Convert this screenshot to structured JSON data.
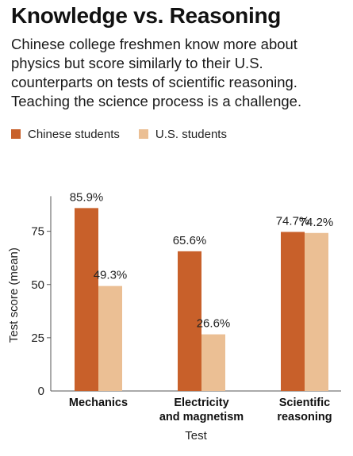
{
  "title": "Knowledge vs. Reasoning",
  "subtitle": "Chinese college freshmen know more about physics but score similarly to their U.S. counterparts on tests of scientific reasoning. Teaching the science process is a challenge.",
  "colors": {
    "chinese": "#c8602a",
    "us": "#ebbf94",
    "axis": "#555555",
    "text": "#222222"
  },
  "chart_data": {
    "type": "bar",
    "title": "Knowledge vs. Reasoning",
    "xlabel": "Test",
    "ylabel": "Test score (mean)",
    "ylim": [
      0,
      90
    ],
    "yticks": [
      0,
      25,
      50,
      75
    ],
    "ytick_labels": [
      "0",
      "25",
      "50",
      "75"
    ],
    "categories": [
      [
        "Mechanics"
      ],
      [
        "Electricity",
        "and magnetism"
      ],
      [
        "Scientific",
        "reasoning"
      ]
    ],
    "series": [
      {
        "name": "Chinese students",
        "values": [
          85.9,
          65.6,
          74.7
        ],
        "labels": [
          "85.9%",
          "65.6%",
          "74.7%"
        ]
      },
      {
        "name": "U.S. students",
        "values": [
          49.3,
          26.6,
          74.2
        ],
        "labels": [
          "49.3%",
          "26.6%",
          "74.2%"
        ]
      }
    ],
    "legend_position": "top-left",
    "grid": false
  }
}
